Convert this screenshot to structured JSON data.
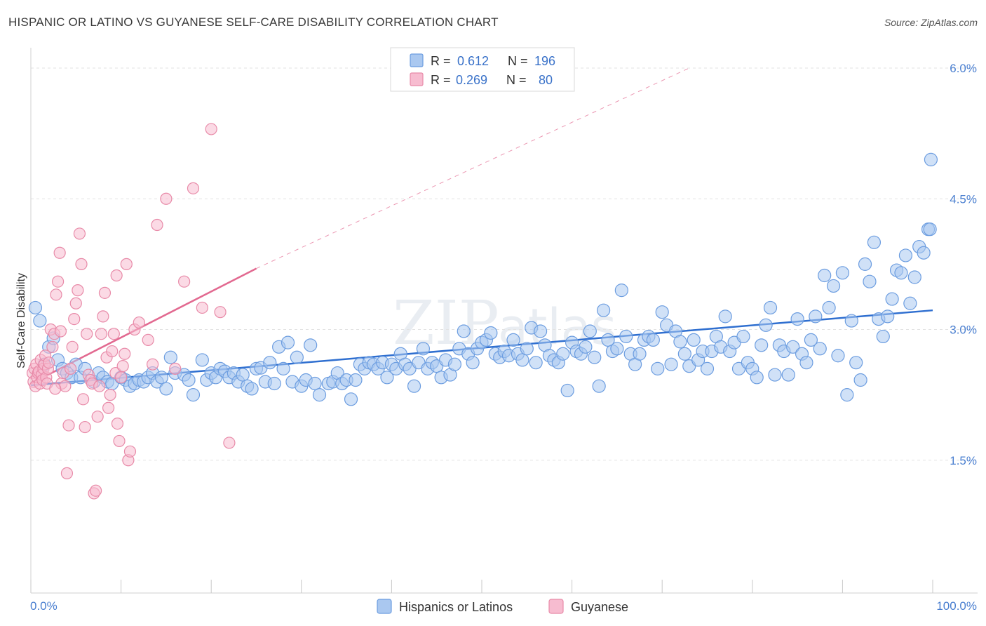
{
  "header": {
    "title": "HISPANIC OR LATINO VS GUYANESE SELF-CARE DISABILITY CORRELATION CHART",
    "source": "Source: ZipAtlas.com"
  },
  "watermark": {
    "zip": "ZIP",
    "atlas": "atlas"
  },
  "legend_top": {
    "rows": [
      {
        "r_label": "R =",
        "r_value": "0.612",
        "n_label": "N =",
        "n_value": "196",
        "color": "#aac8f0",
        "stroke": "#6c9de0"
      },
      {
        "r_label": "R =",
        "r_value": "0.269",
        "n_label": "N =",
        "n_value": "80",
        "color": "#f7bcd0",
        "stroke": "#e88aa8"
      }
    ]
  },
  "legend_bottom": {
    "items": [
      {
        "label": "Hispanics or Latinos",
        "color": "#aac8f0",
        "stroke": "#6c9de0"
      },
      {
        "label": "Guyanese",
        "color": "#f7bcd0",
        "stroke": "#e88aa8"
      }
    ]
  },
  "chart_data": {
    "type": "scatter",
    "title": "HISPANIC OR LATINO VS GUYANESE SELF-CARE DISABILITY CORRELATION CHART",
    "xlabel": "",
    "ylabel": "Self-Care Disability",
    "xlim": [
      0,
      100
    ],
    "ylim": [
      0,
      6.2
    ],
    "x_tick_labels": [
      "0.0%",
      "100.0%"
    ],
    "y_ticks": [
      1.5,
      3.0,
      4.5,
      6.0
    ],
    "y_tick_labels": [
      "1.5%",
      "3.0%",
      "4.5%",
      "6.0%"
    ],
    "series": [
      {
        "name": "Hispanics or Latinos",
        "color": "#aac8f0",
        "stroke": "#6c9de0",
        "trend": {
          "x": [
            0,
            100
          ],
          "y": [
            2.36,
            3.22
          ],
          "color": "#2f6fd0"
        },
        "points": [
          [
            0.5,
            3.25
          ],
          [
            1,
            3.1
          ],
          [
            1.5,
            2.6
          ],
          [
            2,
            2.8
          ],
          [
            2.5,
            2.9
          ],
          [
            3,
            2.65
          ],
          [
            3.5,
            2.55
          ],
          [
            4,
            2.5
          ],
          [
            4.5,
            2.45
          ],
          [
            5,
            2.6
          ],
          [
            5.5,
            2.45
          ],
          [
            6,
            2.55
          ],
          [
            7,
            2.4
          ],
          [
            7.5,
            2.5
          ],
          [
            8,
            2.45
          ],
          [
            8.5,
            2.4
          ],
          [
            9,
            2.38
          ],
          [
            10,
            2.45
          ],
          [
            10.5,
            2.42
          ],
          [
            11,
            2.35
          ],
          [
            11.5,
            2.38
          ],
          [
            12,
            2.42
          ],
          [
            12.5,
            2.4
          ],
          [
            13,
            2.45
          ],
          [
            13.5,
            2.5
          ],
          [
            14,
            2.4
          ],
          [
            14.5,
            2.45
          ],
          [
            15,
            2.32
          ],
          [
            15.5,
            2.68
          ],
          [
            16,
            2.5
          ],
          [
            17,
            2.48
          ],
          [
            17.5,
            2.42
          ],
          [
            18,
            2.25
          ],
          [
            19,
            2.65
          ],
          [
            19.5,
            2.42
          ],
          [
            20,
            2.5
          ],
          [
            20.5,
            2.45
          ],
          [
            21,
            2.55
          ],
          [
            21.5,
            2.52
          ],
          [
            22,
            2.45
          ],
          [
            22.5,
            2.5
          ],
          [
            23,
            2.4
          ],
          [
            23.5,
            2.48
          ],
          [
            24,
            2.35
          ],
          [
            24.5,
            2.32
          ],
          [
            25,
            2.55
          ],
          [
            25.5,
            2.56
          ],
          [
            26,
            2.4
          ],
          [
            26.5,
            2.62
          ],
          [
            27,
            2.38
          ],
          [
            27.5,
            2.8
          ],
          [
            28,
            2.55
          ],
          [
            28.5,
            2.85
          ],
          [
            29,
            2.4
          ],
          [
            29.5,
            2.68
          ],
          [
            30,
            2.35
          ],
          [
            30.5,
            2.42
          ],
          [
            31,
            2.82
          ],
          [
            31.5,
            2.38
          ],
          [
            32,
            2.25
          ],
          [
            33,
            2.38
          ],
          [
            33.5,
            2.4
          ],
          [
            34,
            2.5
          ],
          [
            34.5,
            2.38
          ],
          [
            35,
            2.42
          ],
          [
            35.5,
            2.2
          ],
          [
            36,
            2.42
          ],
          [
            36.5,
            2.6
          ],
          [
            37,
            2.55
          ],
          [
            37.5,
            2.62
          ],
          [
            38,
            2.6
          ],
          [
            38.5,
            2.55
          ],
          [
            39,
            2.62
          ],
          [
            39.5,
            2.45
          ],
          [
            40,
            2.6
          ],
          [
            40.5,
            2.55
          ],
          [
            41,
            2.72
          ],
          [
            41.5,
            2.6
          ],
          [
            42,
            2.55
          ],
          [
            42.5,
            2.35
          ],
          [
            43,
            2.62
          ],
          [
            43.5,
            2.78
          ],
          [
            44,
            2.55
          ],
          [
            44.5,
            2.62
          ],
          [
            45,
            2.58
          ],
          [
            45.5,
            2.45
          ],
          [
            46,
            2.65
          ],
          [
            46.5,
            2.48
          ],
          [
            47,
            2.6
          ],
          [
            47.5,
            2.78
          ],
          [
            48,
            2.98
          ],
          [
            48.5,
            2.72
          ],
          [
            49,
            2.62
          ],
          [
            49.5,
            2.78
          ],
          [
            50,
            2.85
          ],
          [
            50.5,
            2.88
          ],
          [
            51,
            2.96
          ],
          [
            51.5,
            2.72
          ],
          [
            52,
            2.68
          ],
          [
            52.5,
            2.75
          ],
          [
            53,
            2.7
          ],
          [
            53.5,
            2.88
          ],
          [
            54,
            2.72
          ],
          [
            54.5,
            2.65
          ],
          [
            55,
            2.78
          ],
          [
            55.5,
            3.02
          ],
          [
            56,
            2.62
          ],
          [
            56.5,
            2.98
          ],
          [
            57,
            2.82
          ],
          [
            57.5,
            2.7
          ],
          [
            58,
            2.65
          ],
          [
            58.5,
            2.62
          ],
          [
            59,
            2.72
          ],
          [
            59.5,
            2.3
          ],
          [
            60,
            2.85
          ],
          [
            60.5,
            2.75
          ],
          [
            61,
            2.72
          ],
          [
            61.5,
            2.8
          ],
          [
            62,
            2.98
          ],
          [
            62.5,
            2.68
          ],
          [
            63,
            2.35
          ],
          [
            63.5,
            3.22
          ],
          [
            64,
            2.88
          ],
          [
            64.5,
            2.75
          ],
          [
            65,
            2.78
          ],
          [
            65.5,
            3.45
          ],
          [
            66,
            2.92
          ],
          [
            66.5,
            2.72
          ],
          [
            67,
            2.6
          ],
          [
            67.5,
            2.72
          ],
          [
            68,
            2.88
          ],
          [
            68.5,
            2.92
          ],
          [
            69,
            2.88
          ],
          [
            69.5,
            2.55
          ],
          [
            70,
            3.2
          ],
          [
            70.5,
            3.05
          ],
          [
            71,
            2.6
          ],
          [
            71.5,
            2.98
          ],
          [
            72,
            2.86
          ],
          [
            72.5,
            2.72
          ],
          [
            73,
            2.58
          ],
          [
            73.5,
            2.88
          ],
          [
            74,
            2.65
          ],
          [
            74.5,
            2.75
          ],
          [
            75,
            2.55
          ],
          [
            75.5,
            2.75
          ],
          [
            76,
            2.92
          ],
          [
            76.5,
            2.8
          ],
          [
            77,
            3.15
          ],
          [
            77.5,
            2.75
          ],
          [
            78,
            2.85
          ],
          [
            78.5,
            2.55
          ],
          [
            79,
            2.92
          ],
          [
            79.5,
            2.62
          ],
          [
            80,
            2.55
          ],
          [
            80.5,
            2.45
          ],
          [
            81,
            2.82
          ],
          [
            81.5,
            3.05
          ],
          [
            82,
            3.25
          ],
          [
            82.5,
            2.48
          ],
          [
            83,
            2.82
          ],
          [
            83.5,
            2.75
          ],
          [
            84,
            2.48
          ],
          [
            84.5,
            2.8
          ],
          [
            85,
            3.12
          ],
          [
            85.5,
            2.72
          ],
          [
            86,
            2.62
          ],
          [
            86.5,
            2.88
          ],
          [
            87,
            3.15
          ],
          [
            87.5,
            2.78
          ],
          [
            88,
            3.62
          ],
          [
            88.5,
            3.25
          ],
          [
            89,
            3.5
          ],
          [
            89.5,
            2.7
          ],
          [
            90,
            3.65
          ],
          [
            90.5,
            2.25
          ],
          [
            91,
            3.1
          ],
          [
            91.5,
            2.62
          ],
          [
            92,
            2.42
          ],
          [
            92.5,
            3.75
          ],
          [
            93,
            3.55
          ],
          [
            93.5,
            4.0
          ],
          [
            94,
            3.12
          ],
          [
            94.5,
            2.92
          ],
          [
            95,
            3.15
          ],
          [
            95.5,
            3.35
          ],
          [
            96,
            3.68
          ],
          [
            96.5,
            3.65
          ],
          [
            97,
            3.85
          ],
          [
            97.5,
            3.3
          ],
          [
            98,
            3.6
          ],
          [
            98.5,
            3.95
          ],
          [
            99,
            3.88
          ],
          [
            99.5,
            4.15
          ],
          [
            99.7,
            4.15
          ],
          [
            99.8,
            4.95
          ]
        ]
      },
      {
        "name": "Guyanese",
        "color": "#f7bcd0",
        "stroke": "#e88aa8",
        "trend": {
          "x": [
            0,
            25
          ],
          "y": [
            2.38,
            3.7
          ],
          "extend_to_x": 73,
          "extend_to_y": 6.0,
          "color": "#e26990"
        },
        "points": [
          [
            0.2,
            2.5
          ],
          [
            0.3,
            2.4
          ],
          [
            0.4,
            2.55
          ],
          [
            0.5,
            2.35
          ],
          [
            0.6,
            2.6
          ],
          [
            0.7,
            2.45
          ],
          [
            0.8,
            2.5
          ],
          [
            0.9,
            2.52
          ],
          [
            1,
            2.38
          ],
          [
            1.1,
            2.65
          ],
          [
            1.2,
            2.48
          ],
          [
            1.3,
            2.42
          ],
          [
            1.4,
            2.55
          ],
          [
            1.5,
            2.6
          ],
          [
            1.6,
            2.7
          ],
          [
            1.7,
            2.45
          ],
          [
            1.8,
            2.38
          ],
          [
            1.9,
            2.55
          ],
          [
            2,
            2.62
          ],
          [
            2.2,
            3.0
          ],
          [
            2.4,
            2.8
          ],
          [
            2.6,
            2.95
          ],
          [
            2.8,
            3.4
          ],
          [
            3,
            3.55
          ],
          [
            3.2,
            3.88
          ],
          [
            3.4,
            2.38
          ],
          [
            3.6,
            2.5
          ],
          [
            3.8,
            2.35
          ],
          [
            4,
            1.35
          ],
          [
            4.2,
            1.9
          ],
          [
            4.4,
            2.55
          ],
          [
            4.6,
            2.8
          ],
          [
            4.8,
            3.12
          ],
          [
            5,
            3.3
          ],
          [
            5.2,
            3.45
          ],
          [
            5.4,
            4.1
          ],
          [
            5.6,
            3.75
          ],
          [
            5.8,
            2.2
          ],
          [
            6,
            1.88
          ],
          [
            6.2,
            2.95
          ],
          [
            6.4,
            2.48
          ],
          [
            6.6,
            2.42
          ],
          [
            6.8,
            2.38
          ],
          [
            7,
            1.12
          ],
          [
            7.2,
            1.15
          ],
          [
            7.4,
            2.0
          ],
          [
            7.6,
            2.35
          ],
          [
            7.8,
            2.95
          ],
          [
            8,
            3.15
          ],
          [
            8.2,
            3.42
          ],
          [
            8.4,
            2.68
          ],
          [
            8.6,
            2.1
          ],
          [
            8.8,
            2.25
          ],
          [
            9,
            2.75
          ],
          [
            9.2,
            2.95
          ],
          [
            9.4,
            2.5
          ],
          [
            9.6,
            1.92
          ],
          [
            9.8,
            1.72
          ],
          [
            10,
            2.45
          ],
          [
            10.2,
            2.58
          ],
          [
            10.4,
            2.72
          ],
          [
            10.6,
            3.75
          ],
          [
            10.8,
            1.5
          ],
          [
            11,
            1.6
          ],
          [
            11.5,
            3.0
          ],
          [
            12,
            3.08
          ],
          [
            13,
            2.88
          ],
          [
            13.5,
            2.6
          ],
          [
            14,
            4.2
          ],
          [
            15,
            4.5
          ],
          [
            16,
            2.55
          ],
          [
            17,
            3.55
          ],
          [
            18,
            4.62
          ],
          [
            19,
            3.25
          ],
          [
            20,
            5.3
          ],
          [
            21,
            3.2
          ],
          [
            22,
            1.7
          ],
          [
            9.5,
            3.62
          ],
          [
            3.3,
            2.98
          ],
          [
            2.7,
            2.32
          ]
        ]
      }
    ]
  }
}
